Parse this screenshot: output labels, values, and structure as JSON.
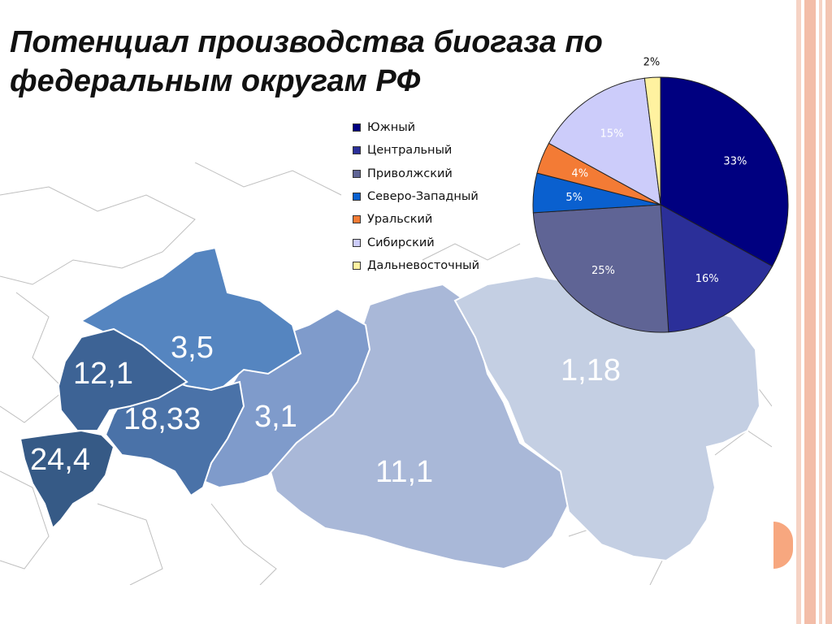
{
  "title": "Потенциал производства биогаза по федеральным округам РФ",
  "map": {
    "regions": [
      {
        "value": "24,4",
        "color": "#365a86"
      },
      {
        "value": "12,1",
        "color": "#3d6395"
      },
      {
        "value": "18,33",
        "color": "#4a72a8"
      },
      {
        "value": "3,5",
        "color": "#5585c0"
      },
      {
        "value": "3,1",
        "color": "#7f9bcb"
      },
      {
        "value": "11,1",
        "color": "#a9b8d8"
      },
      {
        "value": "1,18",
        "color": "#c4cfe3"
      }
    ]
  },
  "chart_data": {
    "type": "pie",
    "title": "",
    "legend_position": "left",
    "slices": [
      {
        "label": "Южный",
        "value": 33,
        "display": "33%",
        "color": "#000080"
      },
      {
        "label": "Центральный",
        "value": 16,
        "display": "16%",
        "color": "#2b2f99"
      },
      {
        "label": "Приволжский",
        "value": 25,
        "display": "25%",
        "color": "#5f6495"
      },
      {
        "label": "Северо-Западный",
        "value": 5,
        "display": "5%",
        "color": "#0a60cf"
      },
      {
        "label": "Уральский",
        "value": 4,
        "display": "4%",
        "color": "#f37b35"
      },
      {
        "label": "Сибирский",
        "value": 15,
        "display": "15%",
        "color": "#ccccfa"
      },
      {
        "label": "Дальневосточный",
        "value": 2,
        "display": "2%",
        "color": "#fff2a0"
      }
    ]
  }
}
